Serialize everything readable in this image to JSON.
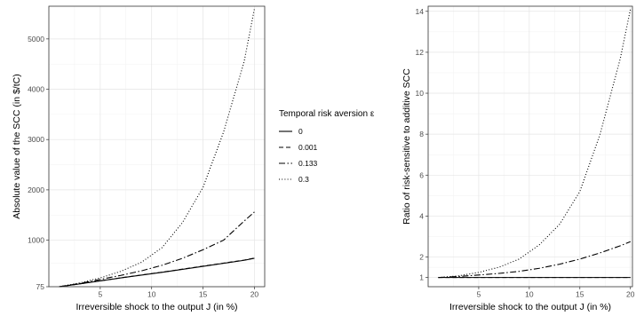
{
  "chart_data": [
    {
      "type": "line",
      "xlabel": "Irreversible shock to the output J (in %)",
      "ylabel": "Absolute value of the SCC (in $/tC)",
      "xlim": [
        0,
        21
      ],
      "ylim": [
        75,
        5650
      ],
      "xticks": [
        5,
        10,
        15,
        20
      ],
      "yticks": [
        75,
        1000,
        2000,
        3000,
        4000,
        5000
      ],
      "grid": true,
      "x": [
        1,
        3,
        5,
        7,
        9,
        11,
        13,
        15,
        17,
        19,
        20
      ],
      "series": [
        {
          "name": "0",
          "dash": "solid",
          "values": [
            75,
            130,
            190,
            250,
            305,
            360,
            420,
            480,
            540,
            600,
            640
          ]
        },
        {
          "name": "0.001",
          "dash": "dashed",
          "values": [
            75,
            132,
            192,
            252,
            308,
            364,
            424,
            484,
            544,
            604,
            644
          ]
        },
        {
          "name": "0.133",
          "dash": "dashdot",
          "values": [
            75,
            140,
            220,
            300,
            390,
            500,
            640,
            810,
            1000,
            1380,
            1560
          ]
        },
        {
          "name": "0.3",
          "dash": "dotted",
          "values": [
            75,
            150,
            250,
            380,
            560,
            850,
            1350,
            2050,
            3150,
            4550,
            5600
          ]
        }
      ]
    },
    {
      "type": "line",
      "xlabel": "Irreversible shock to the output J (in %)",
      "ylabel": "Ratio of risk-sensitive to additive SCC",
      "xlim": [
        0,
        20.2
      ],
      "ylim": [
        0.55,
        14.25
      ],
      "xticks": [
        5,
        10,
        15,
        20
      ],
      "yticks": [
        1,
        2,
        4,
        6,
        8,
        10,
        12,
        14
      ],
      "grid": true,
      "x": [
        1,
        3,
        5,
        7,
        9,
        11,
        13,
        15,
        17,
        19,
        20
      ],
      "series": [
        {
          "name": "0",
          "dash": "solid",
          "values": [
            1,
            1,
            1,
            1,
            1,
            1,
            1,
            1,
            1,
            1,
            1
          ]
        },
        {
          "name": "0.001",
          "dash": "dashed",
          "values": [
            1,
            1,
            1,
            1,
            1,
            1,
            1,
            1,
            1,
            1,
            1
          ]
        },
        {
          "name": "0.133",
          "dash": "dashdot",
          "values": [
            1,
            1.05,
            1.12,
            1.2,
            1.3,
            1.45,
            1.65,
            1.9,
            2.2,
            2.55,
            2.75
          ]
        },
        {
          "name": "0.3",
          "dash": "dotted",
          "values": [
            1,
            1.08,
            1.25,
            1.5,
            1.9,
            2.6,
            3.6,
            5.2,
            8.0,
            11.7,
            14.1
          ]
        }
      ]
    }
  ],
  "legend": {
    "title": "Temporal risk aversion ε",
    "entries": [
      {
        "label": "0",
        "dash": "solid"
      },
      {
        "label": "0.001",
        "dash": "dashed"
      },
      {
        "label": "0.133",
        "dash": "dashdot"
      },
      {
        "label": "0.3",
        "dash": "dotted"
      }
    ],
    "placement": "between panels"
  }
}
